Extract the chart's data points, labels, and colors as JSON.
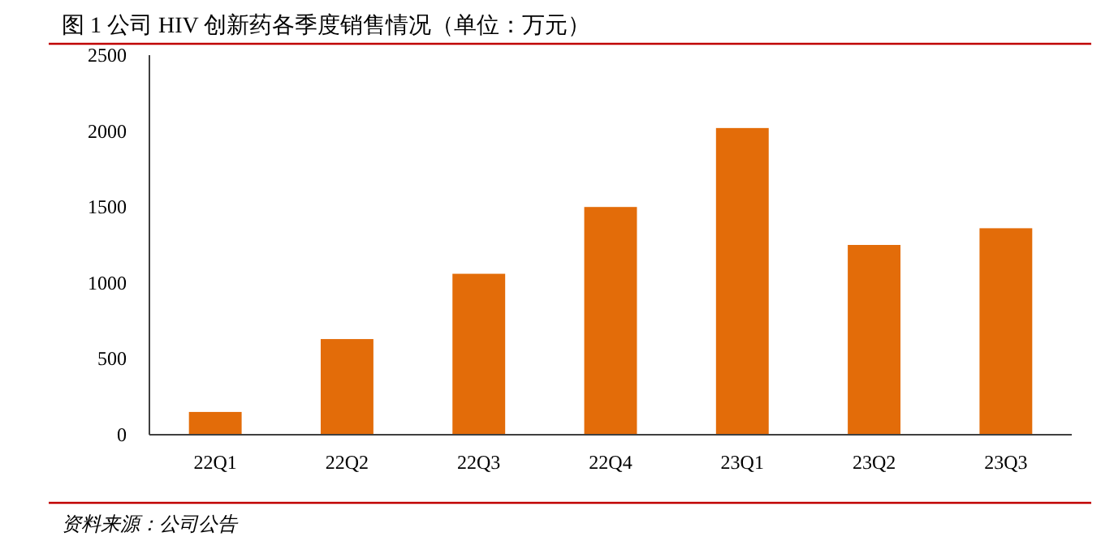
{
  "chart_data": {
    "type": "bar",
    "title": "图 1  公司 HIV 创新药各季度销售情况（单位：万元）",
    "categories": [
      "22Q1",
      "22Q2",
      "22Q3",
      "22Q4",
      "23Q1",
      "23Q2",
      "23Q3"
    ],
    "values": [
      150,
      630,
      1060,
      1500,
      2020,
      1250,
      1360
    ],
    "color": "#e36c09",
    "ylim": [
      0,
      2500
    ],
    "yticks": [
      0,
      500,
      1000,
      1500,
      2000,
      2500
    ],
    "grid": false,
    "annotations": [
      "资料来源：公司公告"
    ]
  }
}
